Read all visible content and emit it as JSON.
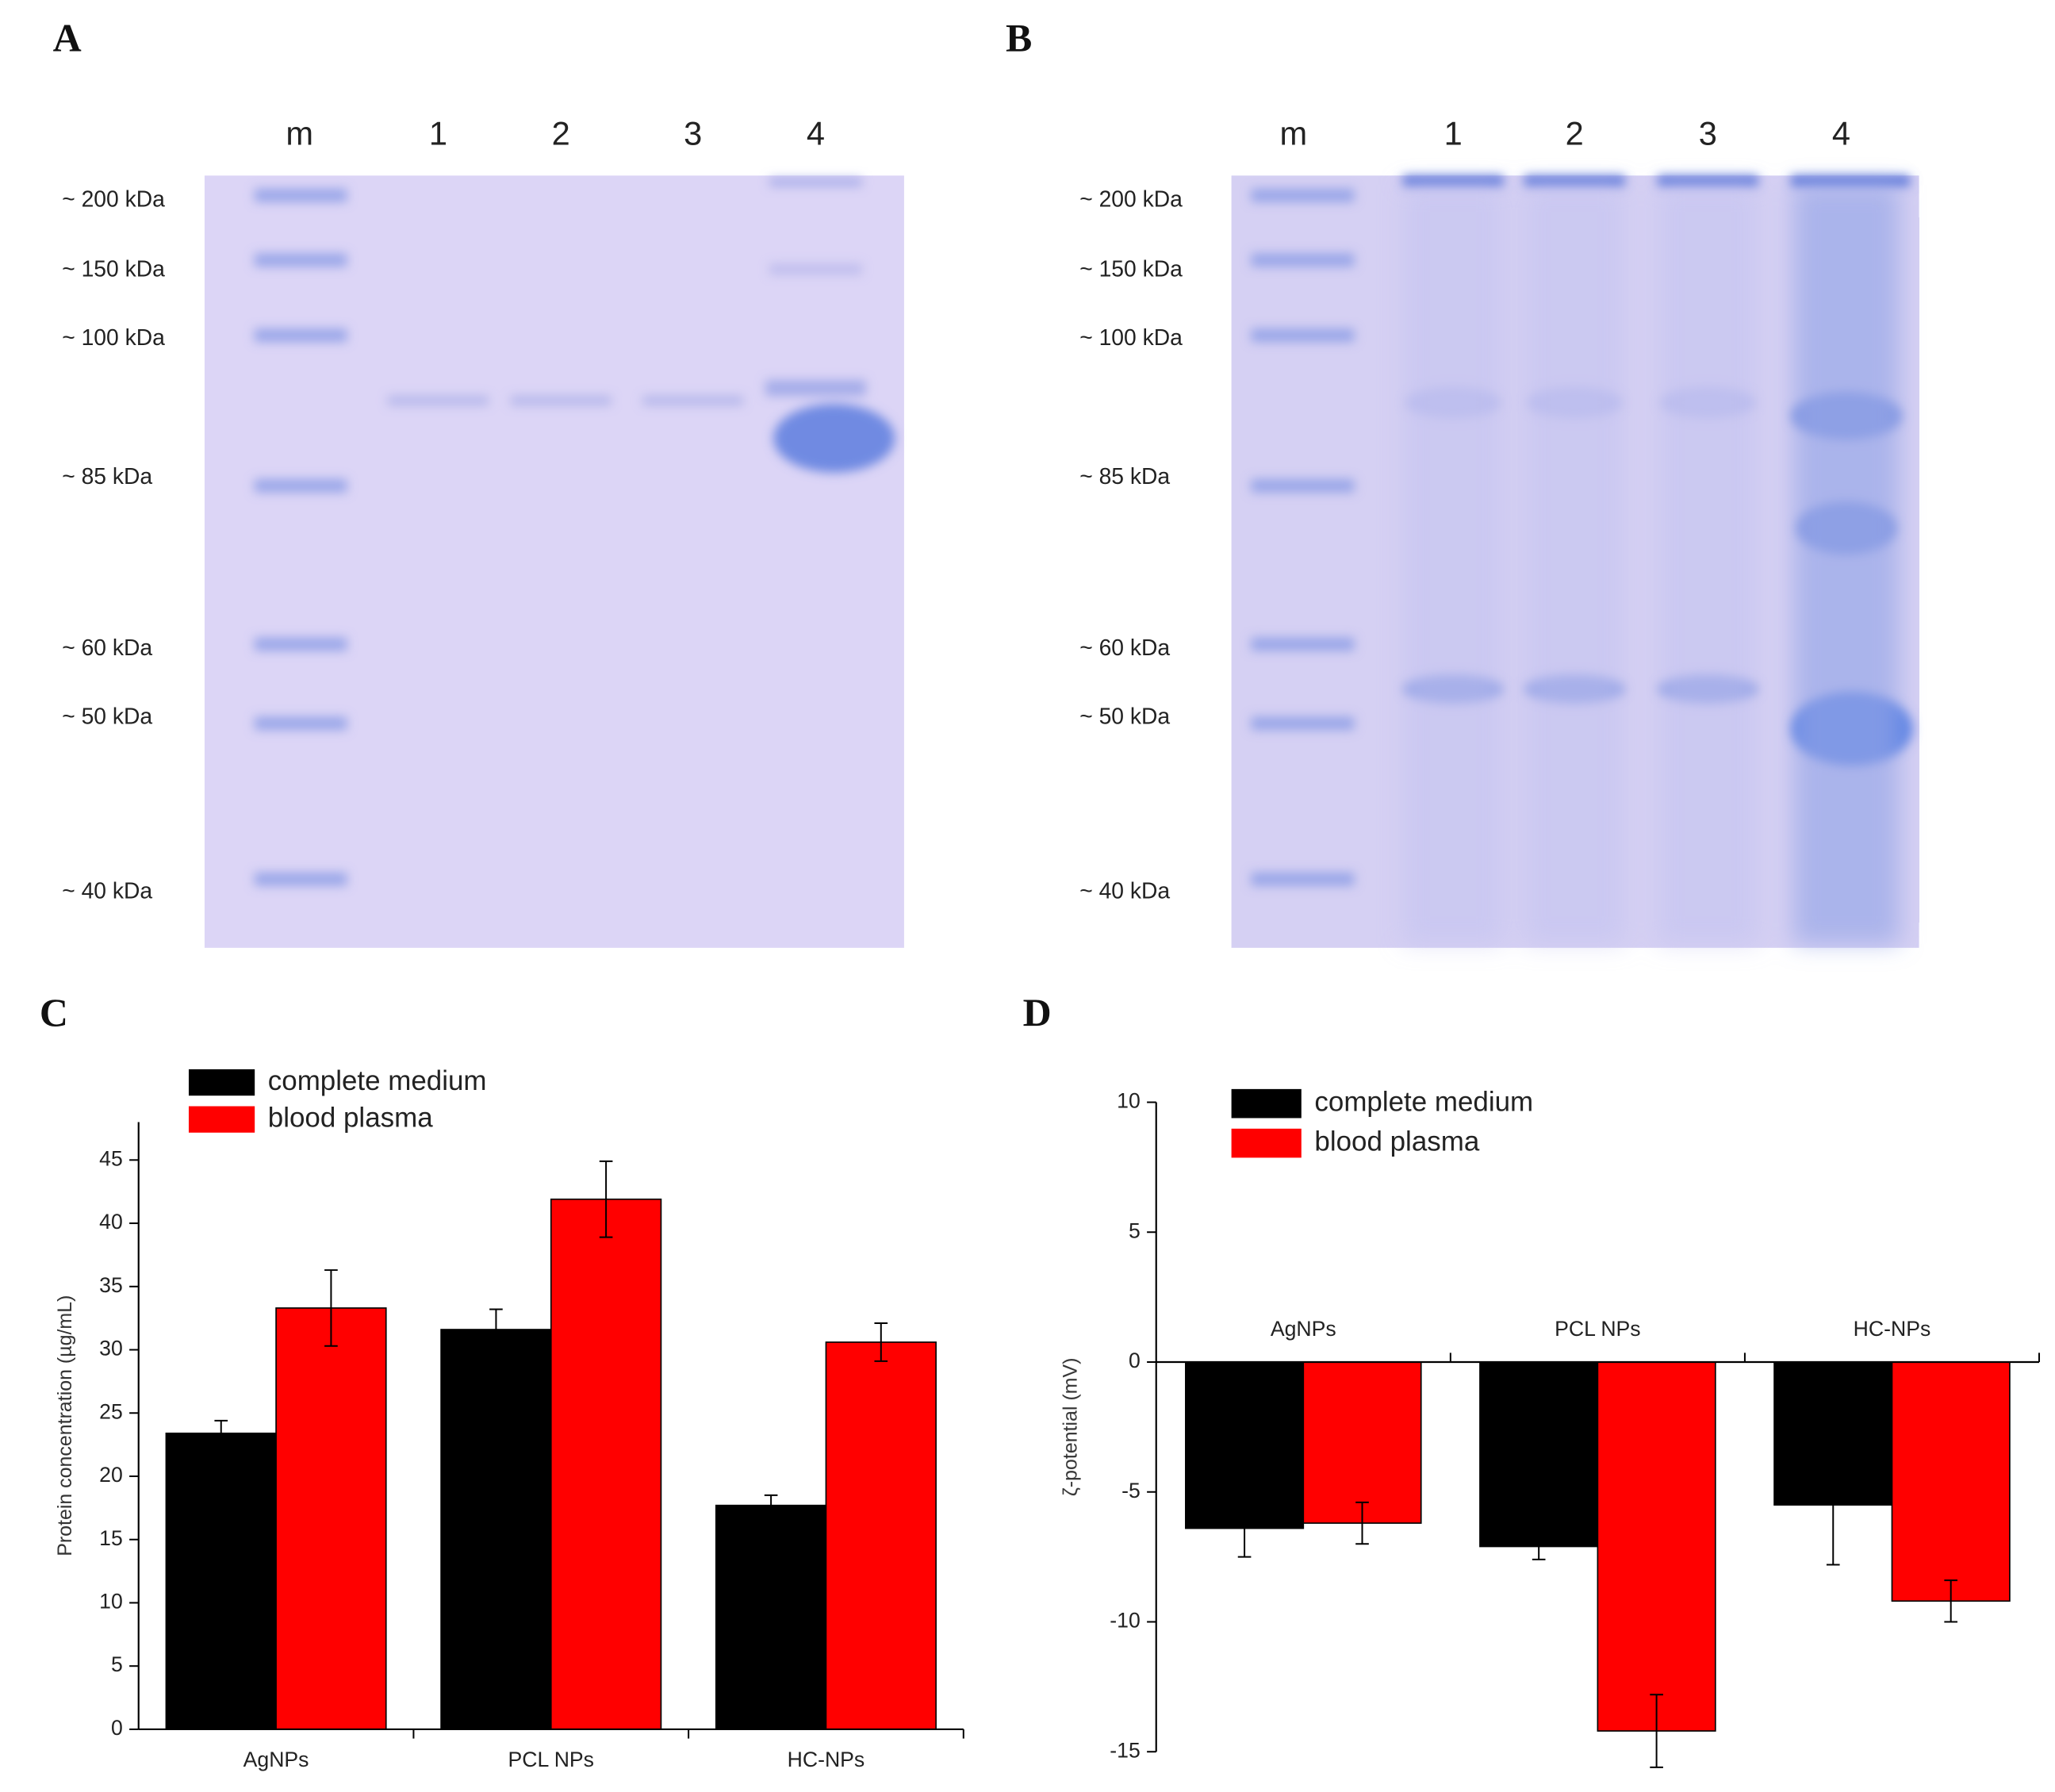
{
  "gels": [
    {
      "panel": "A",
      "lanes": [
        "m",
        "1",
        "2",
        "3",
        "4"
      ],
      "markers": [
        "~ 200 kDa",
        "~ 150 kDa",
        "~ 100 kDa",
        "~ 85 kDa",
        "~ 60 kDa",
        "~ 50 kDa",
        "~ 40 kDa"
      ]
    },
    {
      "panel": "B",
      "lanes": [
        "m",
        "1",
        "2",
        "3",
        "4"
      ],
      "markers": [
        "~ 200 kDa",
        "~ 150 kDa",
        "~ 100 kDa",
        "~ 85 kDa",
        "~ 60 kDa",
        "~ 50 kDa",
        "~ 40 kDa"
      ]
    }
  ],
  "chart_data": [
    {
      "type": "bar",
      "panel": "C",
      "y_label": "Protein concentration (µg/mL)",
      "categories": [
        "AgNPs",
        "PCL NPs",
        "HC-NPs"
      ],
      "series": [
        {
          "name": "complete medium",
          "color": "#000000",
          "values": [
            23.4,
            31.6,
            17.7
          ],
          "errors": [
            1.0,
            1.6,
            0.8
          ]
        },
        {
          "name": "blood plasma",
          "color": "#ff0000",
          "values": [
            33.3,
            41.9,
            30.6
          ],
          "errors": [
            3.0,
            3.0,
            1.5
          ]
        }
      ],
      "ylim": [
        0,
        48
      ],
      "yticks": [
        0,
        5,
        10,
        15,
        20,
        25,
        30,
        35,
        40,
        45
      ],
      "legend": "upper left"
    },
    {
      "type": "bar",
      "panel": "D",
      "y_label": "ζ-potential (mV)",
      "categories": [
        "AgNPs",
        "PCL NPs",
        "HC-NPs"
      ],
      "series": [
        {
          "name": "complete medium",
          "color": "#000000",
          "values": [
            -6.4,
            -7.1,
            -5.5
          ],
          "errors": [
            1.1,
            0.5,
            2.3
          ]
        },
        {
          "name": "blood plasma",
          "color": "#ff0000",
          "values": [
            -6.2,
            -14.2,
            -9.2
          ],
          "errors": [
            0.8,
            1.4,
            0.8
          ]
        }
      ],
      "ylim": [
        -15,
        10
      ],
      "yticks": [
        -15,
        -10,
        -5,
        0,
        5,
        10
      ],
      "legend": "upper left"
    }
  ]
}
